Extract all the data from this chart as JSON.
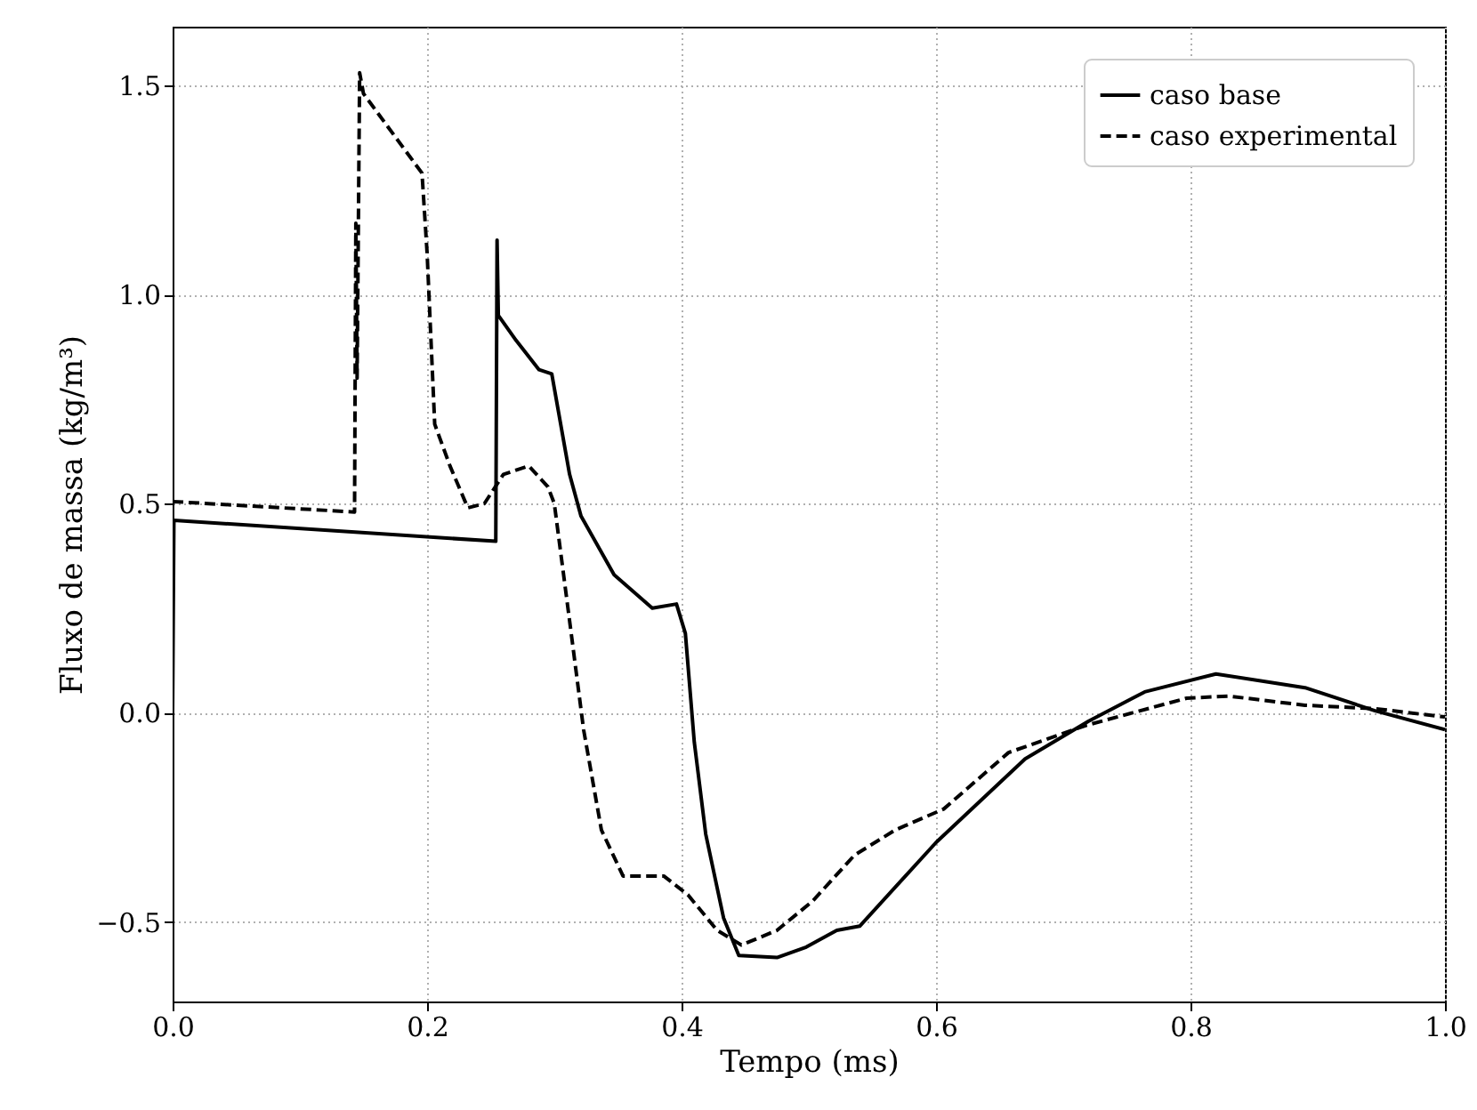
{
  "chart_data": {
    "type": "line",
    "xlabel": "Tempo (ms)",
    "ylabel": "Fluxo de massa (kg/m³)",
    "xlim": [
      0.0,
      1.0
    ],
    "ylim": [
      -0.69,
      1.64
    ],
    "xticks": [
      {
        "value": 0.0,
        "label": "0.0"
      },
      0.2,
      0.4,
      0.6,
      0.8,
      {
        "value": 1.0,
        "label": "1.0"
      }
    ],
    "yticks": [
      {
        "value": -0.5,
        "label": "−0.5"
      },
      {
        "value": 0.0,
        "label": "0.0"
      },
      0.5,
      {
        "value": 1.0,
        "label": "1.0"
      },
      1.5
    ],
    "grid": true,
    "legend": "top right",
    "marker": "none",
    "series": [
      {
        "name": "caso base",
        "color": "#000000",
        "line_style": "solid",
        "x": [
          0.0,
          0.001,
          0.254,
          0.255,
          0.256,
          0.27,
          0.288,
          0.298,
          0.312,
          0.321,
          0.347,
          0.377,
          0.396,
          0.403,
          0.41,
          0.419,
          0.433,
          0.445,
          0.475,
          0.498,
          0.522,
          0.54,
          0.6,
          0.67,
          0.72,
          0.764,
          0.82,
          0.89,
          0.945,
          1.0
        ],
        "values": [
          0.0,
          0.46,
          0.41,
          1.13,
          0.95,
          0.89,
          0.82,
          0.81,
          0.57,
          0.47,
          0.33,
          0.25,
          0.26,
          0.19,
          -0.07,
          -0.29,
          -0.49,
          -0.58,
          -0.585,
          -0.56,
          -0.52,
          -0.51,
          -0.31,
          -0.11,
          -0.02,
          0.05,
          0.093,
          0.06,
          0.005,
          -0.04
        ]
      },
      {
        "name": "caso experimental",
        "color": "#000000",
        "line_style": "dashed",
        "x": [
          0.0,
          0.143,
          0.144,
          0.145,
          0.147,
          0.15,
          0.196,
          0.2,
          0.206,
          0.218,
          0.232,
          0.245,
          0.26,
          0.28,
          0.295,
          0.3,
          0.312,
          0.323,
          0.337,
          0.354,
          0.386,
          0.405,
          0.428,
          0.447,
          0.475,
          0.503,
          0.536,
          0.568,
          0.606,
          0.657,
          0.718,
          0.797,
          0.83,
          0.89,
          0.945,
          1.0
        ],
        "values": [
          0.505,
          0.48,
          1.17,
          0.8,
          1.53,
          1.48,
          1.29,
          1.1,
          0.69,
          0.59,
          0.49,
          0.5,
          0.57,
          0.59,
          0.54,
          0.5,
          0.22,
          -0.04,
          -0.28,
          -0.39,
          -0.39,
          -0.435,
          -0.52,
          -0.555,
          -0.52,
          -0.45,
          -0.34,
          -0.28,
          -0.23,
          -0.095,
          -0.03,
          0.035,
          0.04,
          0.018,
          0.01,
          -0.01
        ]
      }
    ]
  }
}
